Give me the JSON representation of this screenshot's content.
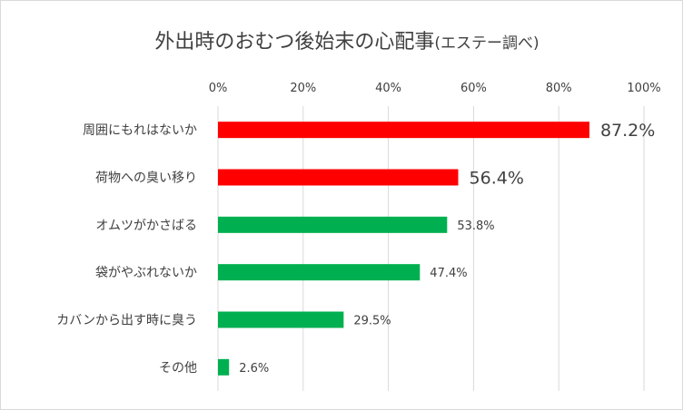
{
  "chart_data": {
    "type": "bar",
    "orientation": "horizontal",
    "title": "外出時のおむつ後始末の心配事",
    "title_suffix": "(エステー調べ)",
    "categories": [
      "周囲にもれはないか",
      "荷物への臭い移り",
      "オムツがかさばる",
      "袋がやぶれないか",
      "カバンから出す時に臭う",
      "その他"
    ],
    "values": [
      87.2,
      56.4,
      53.8,
      47.4,
      29.5,
      2.6
    ],
    "data_labels": [
      "87.2%",
      "56.4%",
      "53.8%",
      "47.4%",
      "29.5%",
      "2.6%"
    ],
    "highlighted": [
      true,
      true,
      false,
      false,
      false,
      false
    ],
    "x_axis": {
      "position": "top",
      "ticks": [
        0,
        20,
        40,
        60,
        80,
        100
      ],
      "tick_labels": [
        "0%",
        "20%",
        "40%",
        "60%",
        "80%",
        "100%"
      ],
      "xlim": [
        0,
        100
      ]
    },
    "grid": true,
    "legend": "none",
    "colors": {
      "highlight": "#ff0000",
      "normal": "#00b050",
      "highlight_label": "#e00000",
      "label": "#404040",
      "grid": "#d9d9d9"
    }
  }
}
